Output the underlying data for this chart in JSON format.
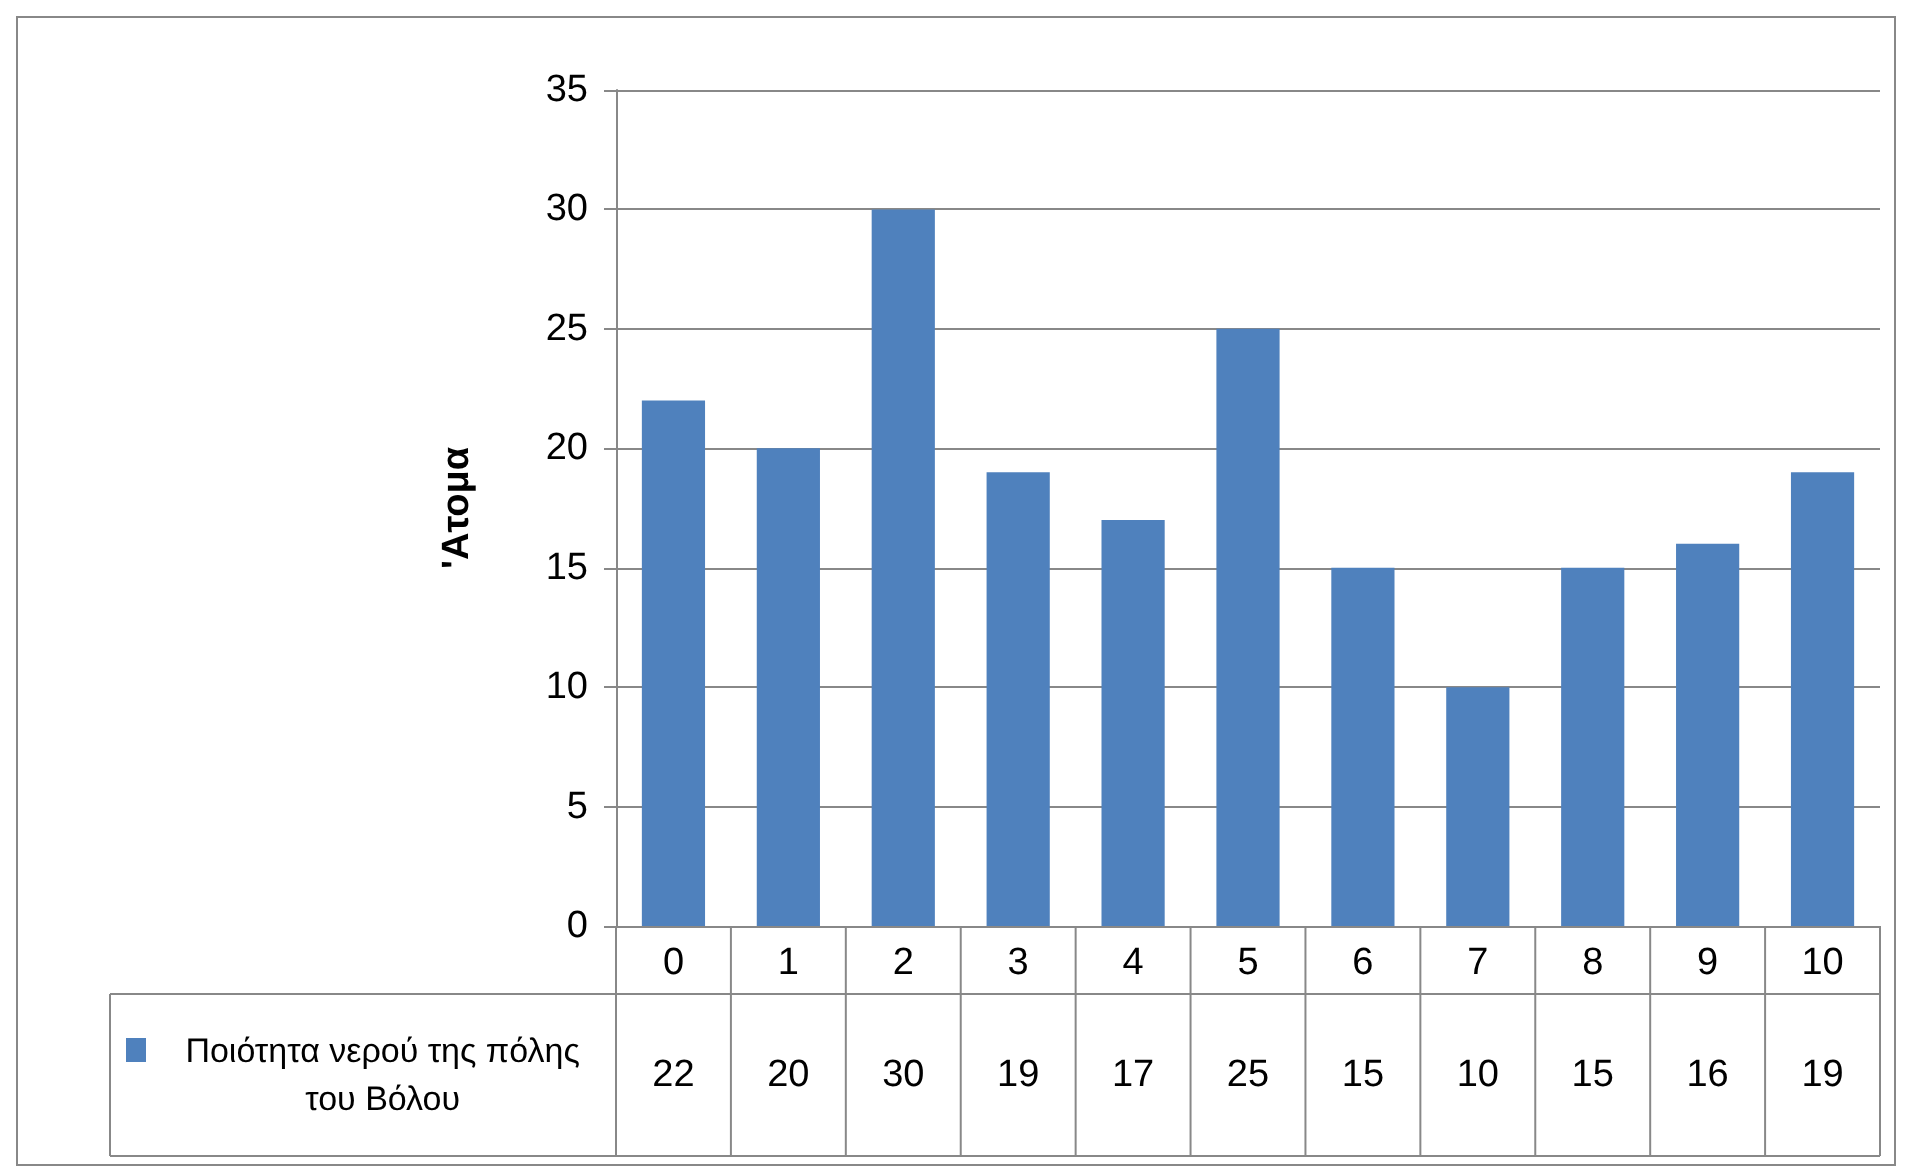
{
  "chart_data": {
    "type": "bar",
    "ylabel": "'Ατομα",
    "categories": [
      "0",
      "1",
      "2",
      "3",
      "4",
      "5",
      "6",
      "7",
      "8",
      "9",
      "10"
    ],
    "series": [
      {
        "name": "Ποιότητα νερού της πόλης του Βόλου",
        "color": "#4f81bd",
        "values": [
          22,
          20,
          30,
          19,
          17,
          25,
          15,
          10,
          15,
          16,
          19
        ]
      }
    ],
    "ylim": [
      0,
      35
    ],
    "yticks": [
      0,
      5,
      10,
      15,
      20,
      25,
      30,
      35
    ],
    "grid": "y",
    "data_labels": true,
    "legend": "bottom left"
  }
}
